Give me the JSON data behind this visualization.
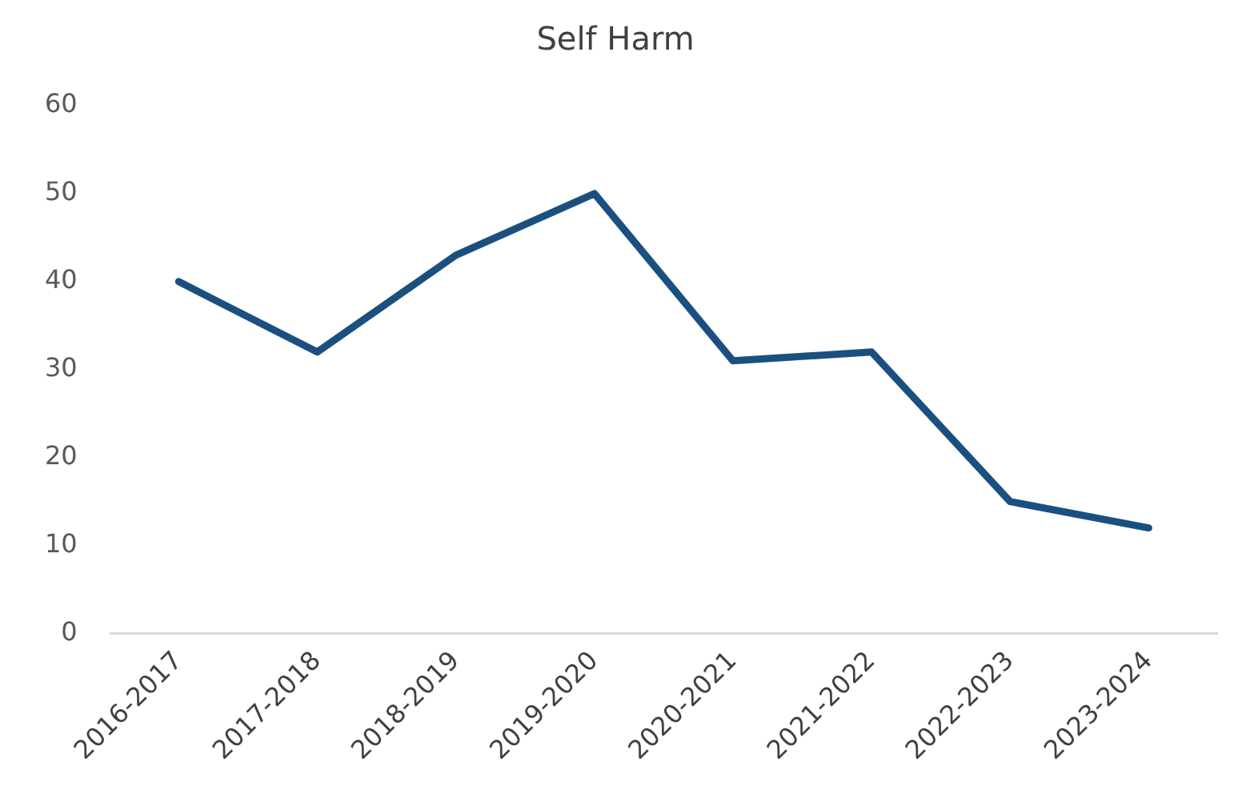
{
  "chart_data": {
    "type": "line",
    "title": "Self Harm",
    "categories": [
      "2016-2017",
      "2017-2018",
      "2018-2019",
      "2019-2020",
      "2020-2021",
      "2021-2022",
      "2022-2023",
      "2023-2024"
    ],
    "series": [
      {
        "color": "#1b4f80",
        "values": [
          40,
          32,
          43,
          50,
          31,
          32,
          15,
          12
        ]
      }
    ],
    "ylim": [
      0,
      60
    ],
    "yticks": [
      0,
      10,
      20,
      30,
      40,
      50,
      60
    ],
    "grid": false,
    "legend": false,
    "marker": "none",
    "line_style": "solid"
  }
}
